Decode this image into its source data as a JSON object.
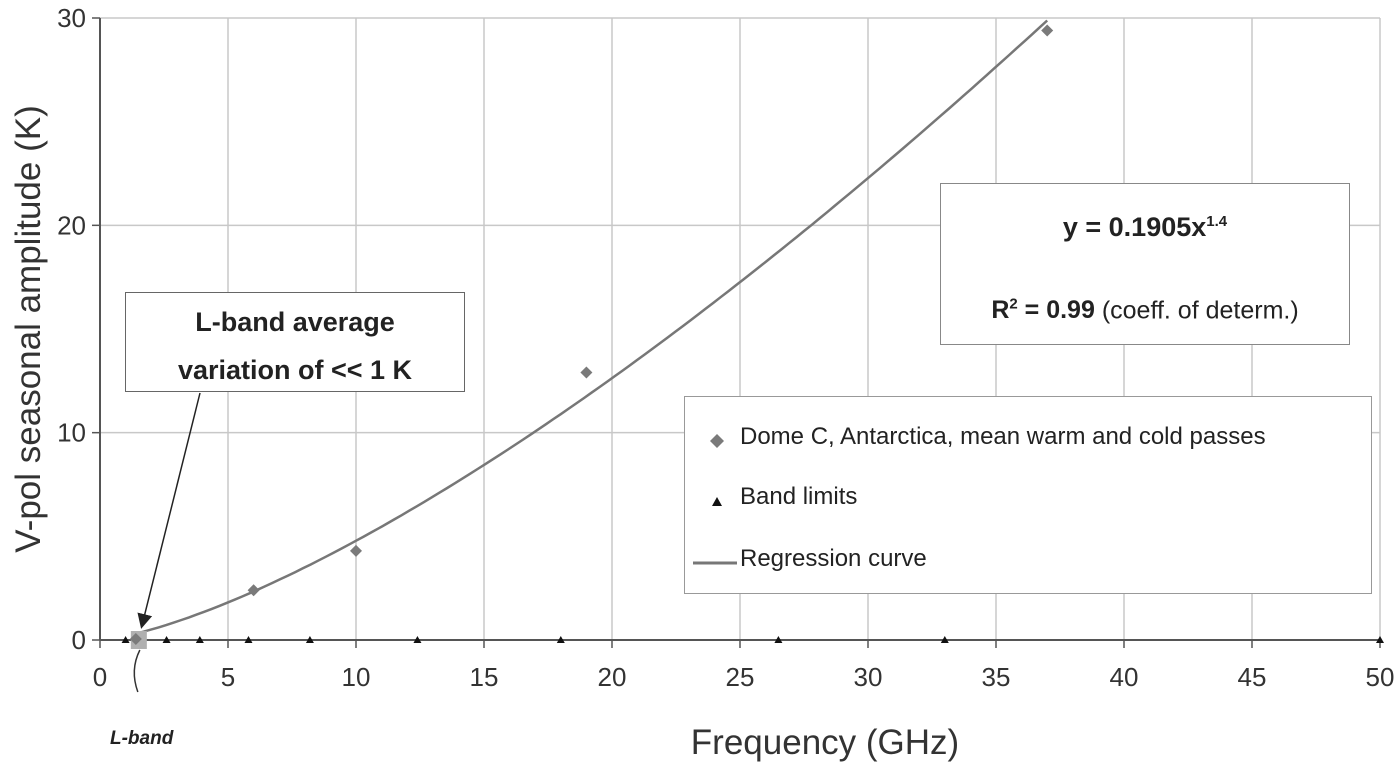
{
  "chart_data": {
    "type": "scatter",
    "xlabel": "Frequency (GHz)",
    "ylabel": "V-pol seasonal amplitude (K)",
    "xlim": [
      0,
      50
    ],
    "ylim": [
      0,
      30
    ],
    "xticks": [
      0,
      5,
      10,
      15,
      20,
      25,
      30,
      35,
      40,
      45,
      50
    ],
    "yticks": [
      0,
      10,
      20,
      30
    ],
    "grid": true,
    "legend_position": "right",
    "series": [
      {
        "name": "Dome C, Antarctica, mean warm and cold passes",
        "type": "scatter",
        "marker": "diamond",
        "color": "#7a7a7a",
        "x": [
          1.4,
          6,
          10,
          19,
          37
        ],
        "y": [
          0.05,
          2.4,
          4.3,
          12.9,
          29.4
        ]
      },
      {
        "name": "Band limits",
        "type": "scatter",
        "marker": "triangle",
        "color": "#111111",
        "x": [
          1.0,
          2.6,
          3.9,
          5.8,
          8.2,
          12.4,
          18.0,
          26.5,
          33.0,
          50.0
        ],
        "y": [
          0,
          0,
          0,
          0,
          0,
          0,
          0,
          0,
          0,
          0
        ]
      },
      {
        "name": "Regression curve",
        "type": "line",
        "color": "#777777",
        "equation": {
          "coef": 0.1905,
          "exponent": 1.4
        },
        "x_range": [
          1.4,
          37
        ]
      }
    ],
    "annotations": {
      "equation_label": "y = 0.1905x",
      "equation_exponent": "1.4",
      "r2_prefix": "R",
      "r2_sup": "2",
      "r2_value": " = 0.99",
      "r2_note": " (coeff. of determ.)",
      "lband_note_line1": "L-band average",
      "lband_note_line2": "variation of << 1 K",
      "lband_axis_label": "L-band",
      "lband_frequency": 1.4
    },
    "colors": {
      "grid": "#c8c8c8",
      "axis": "#555555",
      "lband_marker": "#b0b0b0"
    }
  }
}
